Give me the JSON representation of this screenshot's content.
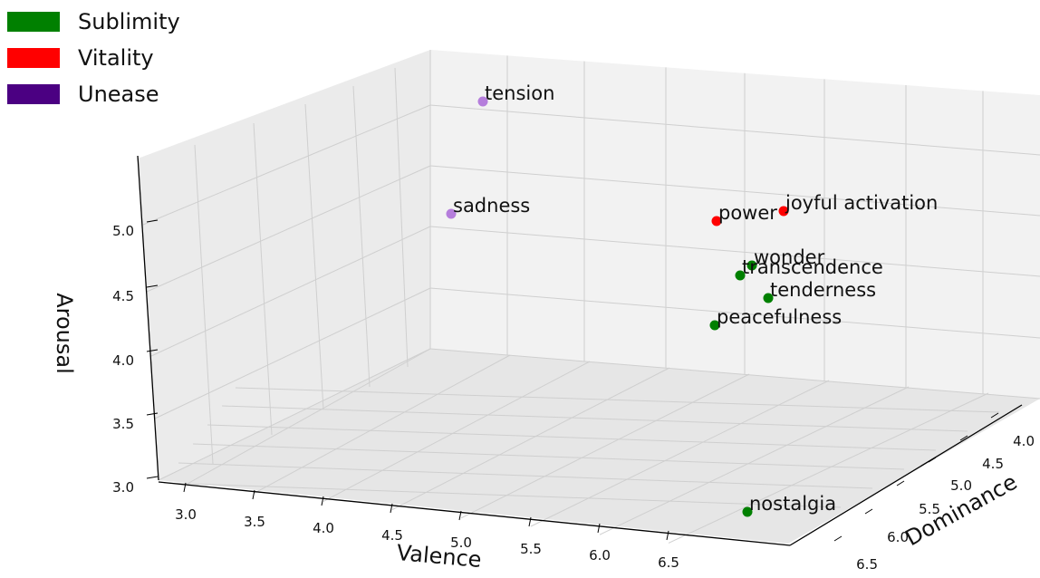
{
  "chart_data": {
    "type": "scatter",
    "projection": "3d",
    "xlabel": "Valence",
    "ylabel": "Dominance",
    "zlabel": "Arousal",
    "x_ticks": [
      "3.0",
      "3.5",
      "4.0",
      "4.5",
      "5.0",
      "5.5",
      "6.0",
      "6.5"
    ],
    "y_ticks": [
      "4.0",
      "4.5",
      "5.0",
      "5.5",
      "6.0",
      "6.5"
    ],
    "z_ticks": [
      "3.0",
      "3.5",
      "4.0",
      "4.5",
      "5.0"
    ],
    "xlim": [
      2.8,
      6.9
    ],
    "ylim": [
      3.6,
      6.6
    ],
    "zlim": [
      2.95,
      5.6
    ],
    "grid": true,
    "legend": {
      "position": "top-left",
      "entries": [
        {
          "name": "Sublimity",
          "color": "#008000"
        },
        {
          "name": "Vitality",
          "color": "#ff0000"
        },
        {
          "name": "Unease",
          "color": "#4b0082"
        }
      ]
    },
    "points": [
      {
        "label": "tension",
        "group": "Unease",
        "color": "#b57edc"
      },
      {
        "label": "sadness",
        "group": "Unease",
        "color": "#b57edc"
      },
      {
        "label": "power",
        "group": "Vitality",
        "color": "#ff0000"
      },
      {
        "label": "joyful activation",
        "group": "Vitality",
        "color": "#ff0000"
      },
      {
        "label": "wonder",
        "group": "Sublimity",
        "color": "#008000"
      },
      {
        "label": "transcendence",
        "group": "Sublimity",
        "color": "#008000"
      },
      {
        "label": "tenderness",
        "group": "Sublimity",
        "color": "#008000"
      },
      {
        "label": "peacefulness",
        "group": "Sublimity",
        "color": "#008000"
      },
      {
        "label": "nostalgia",
        "group": "Sublimity",
        "color": "#008000"
      }
    ]
  }
}
